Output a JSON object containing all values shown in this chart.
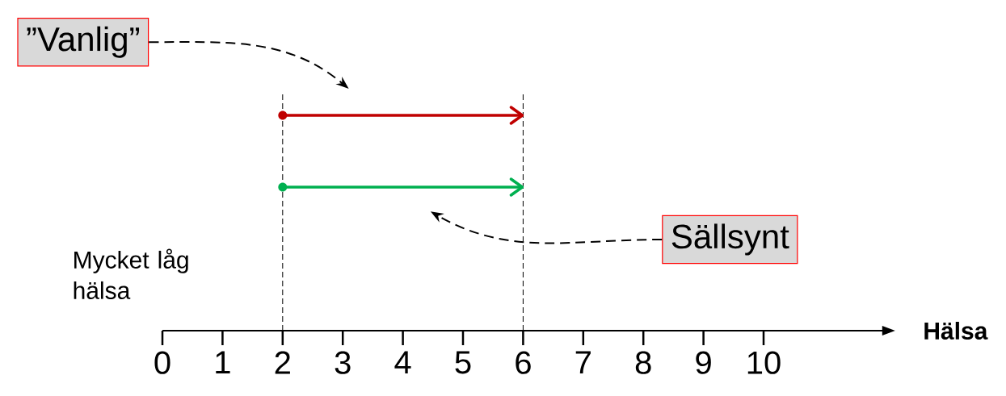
{
  "chart_data": {
    "type": "bar",
    "orientation": "horizontal",
    "categories": [
      null,
      null
    ],
    "values": [
      4,
      4
    ],
    "base": [
      2,
      2
    ],
    "colors": [
      "#c00000",
      "#00b050"
    ],
    "marker": "circle",
    "xlabel": "Hälsa",
    "xlim": [
      0,
      12
    ],
    "xticks": [
      0,
      1,
      2,
      3,
      4,
      5,
      6,
      7,
      8,
      9,
      10
    ],
    "ref_lines": [
      {
        "axis": "x",
        "value": 2,
        "color": "#000000",
        "line_style": "dashed"
      },
      {
        "axis": "x",
        "value": 6,
        "color": "#000000",
        "line_style": "dashed"
      }
    ],
    "annotations": [
      "”Vanlig”",
      "Sällsynt",
      "Mycket låg hälsa"
    ]
  }
}
